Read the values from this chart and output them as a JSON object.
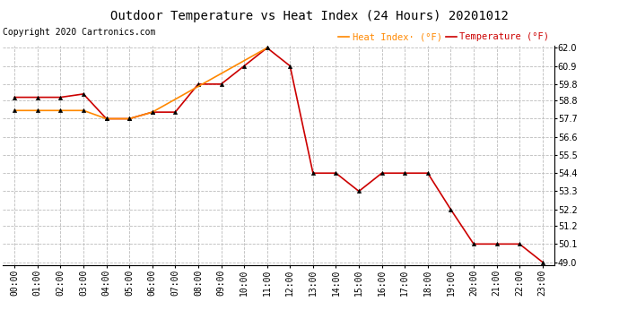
{
  "title": "Outdoor Temperature vs Heat Index (24 Hours) 20201012",
  "copyright": "Copyright 2020 Cartronics.com",
  "hours": [
    "00:00",
    "01:00",
    "02:00",
    "03:00",
    "04:00",
    "05:00",
    "06:00",
    "07:00",
    "08:00",
    "09:00",
    "10:00",
    "11:00",
    "12:00",
    "13:00",
    "14:00",
    "15:00",
    "16:00",
    "17:00",
    "18:00",
    "19:00",
    "20:00",
    "21:00",
    "22:00",
    "23:00"
  ],
  "temperature": [
    59.0,
    59.0,
    59.0,
    59.2,
    57.7,
    57.7,
    58.1,
    58.1,
    59.8,
    59.8,
    60.9,
    62.0,
    60.9,
    54.4,
    54.4,
    53.3,
    54.4,
    54.4,
    54.4,
    52.2,
    50.1,
    50.1,
    50.1,
    49.0
  ],
  "heat_index": [
    58.2,
    58.2,
    58.2,
    58.2,
    57.7,
    57.7,
    58.1,
    null,
    null,
    null,
    null,
    62.0,
    null,
    null,
    null,
    null,
    null,
    null,
    null,
    null,
    null,
    null,
    null,
    null
  ],
  "temp_color": "#cc0000",
  "heat_color": "#ff8800",
  "background_color": "#ffffff",
  "grid_color": "#bbbbbb",
  "ymin": 49.0,
  "ymax": 62.0,
  "yticks": [
    49.0,
    50.1,
    51.2,
    52.2,
    53.3,
    54.4,
    55.5,
    56.6,
    57.7,
    58.8,
    59.8,
    60.9,
    62.0
  ],
  "marker": "^",
  "marker_size": 3,
  "linewidth": 1.2,
  "title_fontsize": 10,
  "tick_fontsize": 7,
  "copyright_fontsize": 7,
  "legend_fontsize": 7.5
}
